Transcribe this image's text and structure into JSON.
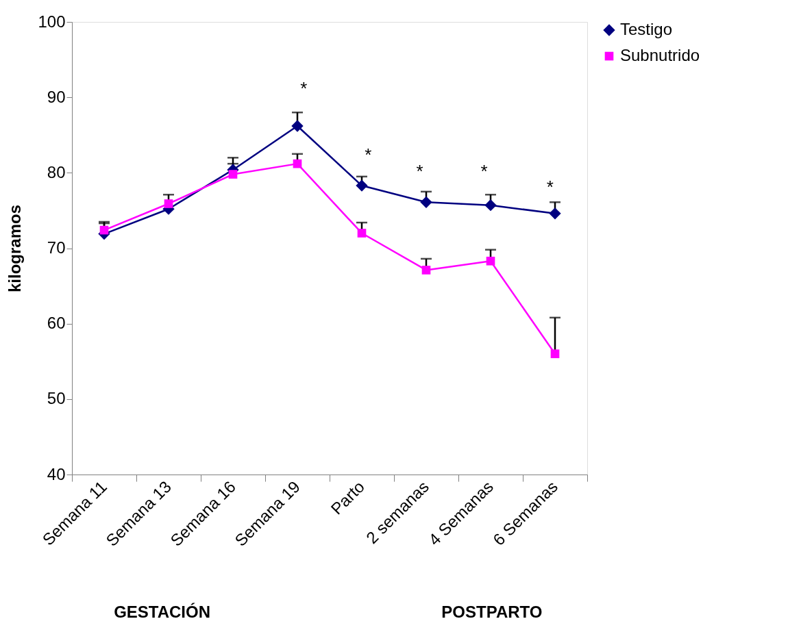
{
  "chart_data": {
    "type": "line",
    "ylabel": "kilogramos",
    "categories": [
      "Semana 11",
      "Semana 13",
      "Semana 16",
      "Semana 19",
      "Parto",
      "2 semanas",
      "4 Semanas",
      "6 Semanas"
    ],
    "series": [
      {
        "name": "Testigo",
        "color": "#000080",
        "marker": "diamond",
        "values": [
          71.9,
          75.2,
          80.4,
          86.2,
          78.3,
          76.1,
          75.7,
          74.6
        ],
        "errors": [
          [
            71.9,
            73.3
          ],
          null,
          [
            80.4,
            82.0
          ],
          [
            86.2,
            88.0
          ],
          [
            78.3,
            79.5
          ],
          [
            76.1,
            77.5
          ],
          [
            75.7,
            77.1
          ],
          [
            74.6,
            76.1
          ]
        ]
      },
      {
        "name": "Subnutrido",
        "color": "#ff00ff",
        "marker": "square",
        "values": [
          72.4,
          75.9,
          79.8,
          81.2,
          72.0,
          67.1,
          68.3,
          56.0
        ],
        "errors": [
          [
            72.4,
            73.5
          ],
          [
            75.9,
            77.1
          ],
          [
            79.8,
            81.2
          ],
          [
            81.2,
            82.5
          ],
          [
            72.0,
            73.4
          ],
          [
            67.1,
            68.6
          ],
          [
            68.3,
            69.8
          ],
          [
            56.0,
            60.8
          ]
        ]
      }
    ],
    "ylim": [
      40,
      100
    ],
    "yticks": [
      40,
      50,
      60,
      70,
      80,
      90,
      100
    ],
    "grid": false,
    "legend": "right",
    "annotations": [
      "*",
      "*",
      "*",
      "*",
      "*",
      "GESTACIÓN",
      "POSTPARTO"
    ]
  }
}
